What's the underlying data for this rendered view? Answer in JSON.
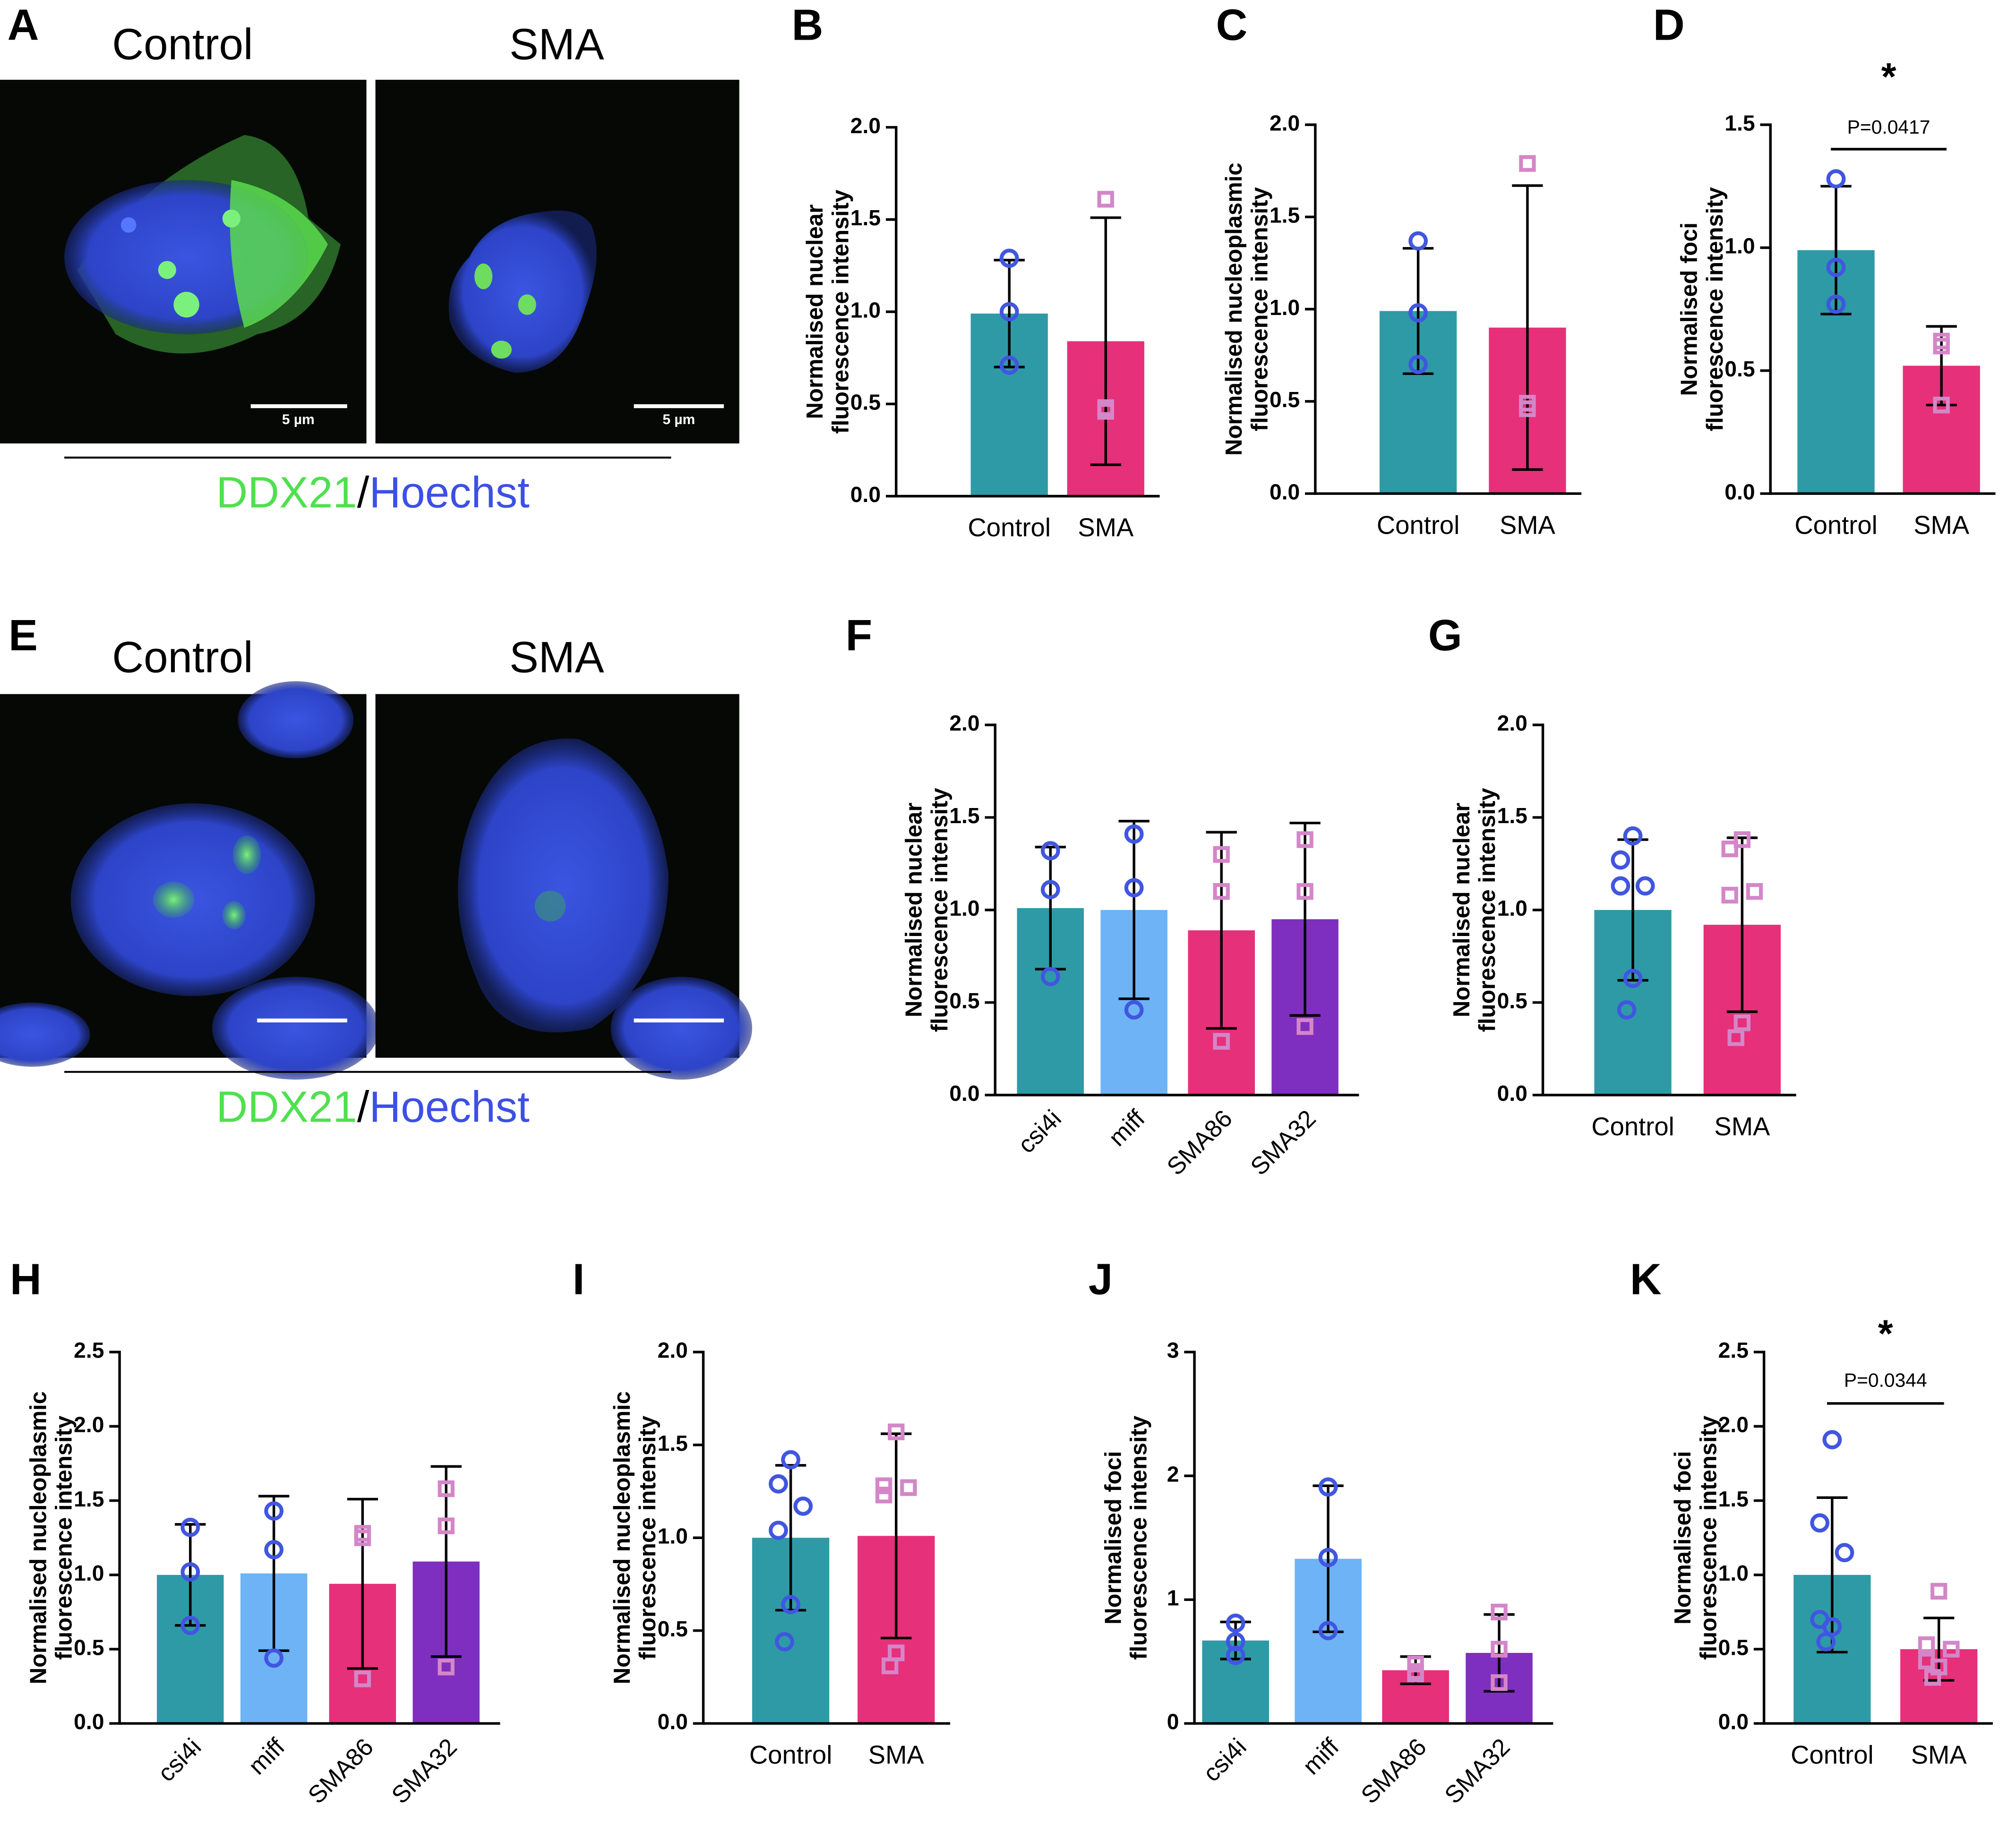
{
  "image_panels": [
    {
      "letter": "A",
      "conditions": [
        "Control",
        "SMA"
      ],
      "scale_bar": "5 µm",
      "stain": [
        "DDX21",
        "/",
        "Hoechst"
      ]
    },
    {
      "letter": "E",
      "conditions": [
        "Control",
        "SMA"
      ],
      "stain": [
        "DDX21",
        "/",
        "Hoechst"
      ]
    }
  ],
  "chart_data": [
    {
      "type": "bar",
      "letter": "B",
      "ylabel": [
        "Normalised nuclear",
        "fluorescence intensity"
      ],
      "categories": [
        "Control",
        "SMA"
      ],
      "values": [
        0.99,
        0.84
      ],
      "errors": [
        0.29,
        0.67
      ],
      "colors": [
        "#2e9aa6",
        "#e6307a"
      ],
      "points": [
        [
          1.29,
          1.0,
          0.71
        ],
        [
          1.61,
          0.46,
          0.48
        ]
      ],
      "point_colors": [
        "#4156e0",
        "#d486c8"
      ],
      "markers": [
        "circle",
        "square"
      ],
      "rotate_labels": false,
      "ylim": [
        0,
        2
      ],
      "yticks": [
        {
          "value": 0,
          "label": "0.0"
        },
        0.5,
        {
          "value": 1,
          "label": "1.0"
        },
        1.5,
        {
          "value": 2,
          "label": "2.0"
        }
      ]
    },
    {
      "type": "bar",
      "letter": "C",
      "ylabel": [
        "Normalised nucleoplasmic",
        "fluorescence intensity"
      ],
      "categories": [
        "Control",
        "SMA"
      ],
      "values": [
        0.99,
        0.9
      ],
      "errors": [
        0.34,
        0.77
      ],
      "colors": [
        "#2e9aa6",
        "#e6307a"
      ],
      "points": [
        [
          1.37,
          0.98,
          0.7
        ],
        [
          1.79,
          0.46,
          0.49
        ]
      ],
      "point_colors": [
        "#4156e0",
        "#d486c8"
      ],
      "markers": [
        "circle",
        "square"
      ],
      "rotate_labels": false,
      "ylim": [
        0,
        2
      ],
      "yticks": [
        {
          "value": 0,
          "label": "0.0"
        },
        0.5,
        {
          "value": 1,
          "label": "1.0"
        },
        1.5,
        {
          "value": 2,
          "label": "2.0"
        }
      ]
    },
    {
      "type": "bar",
      "letter": "D",
      "ylabel": [
        "Normalised foci",
        "fluorescence intensity"
      ],
      "categories": [
        "Control",
        "SMA"
      ],
      "values": [
        0.99,
        0.52
      ],
      "errors": [
        0.26,
        0.16
      ],
      "colors": [
        "#2e9aa6",
        "#e6307a"
      ],
      "points": [
        [
          1.28,
          0.92,
          0.77
        ],
        [
          0.62,
          0.6,
          0.36
        ]
      ],
      "point_colors": [
        "#4156e0",
        "#d486c8"
      ],
      "markers": [
        "circle",
        "square"
      ],
      "rotate_labels": false,
      "significance": "*",
      "p_value": "P=0.0417",
      "ylim": [
        0,
        1.5
      ],
      "yticks": [
        {
          "value": 0,
          "label": "0.0"
        },
        0.5,
        {
          "value": 1,
          "label": "1.0"
        },
        1.5
      ]
    },
    {
      "type": "bar",
      "letter": "F",
      "ylabel": [
        "Normalised nuclear",
        "fluorescence intensity"
      ],
      "categories": [
        "csi4i",
        "miff",
        "SMA86",
        "SMA32"
      ],
      "values": [
        1.01,
        1.0,
        0.89,
        0.95
      ],
      "errors": [
        0.33,
        0.48,
        0.53,
        0.52
      ],
      "colors": [
        "#2e9aa6",
        "#6db3f5",
        "#e6307a",
        "#7e2fbf"
      ],
      "points": [
        [
          1.32,
          1.11,
          0.64
        ],
        [
          1.41,
          1.12,
          0.46
        ],
        [
          1.3,
          1.1,
          0.29
        ],
        [
          1.38,
          1.1,
          0.37
        ]
      ],
      "point_colors": [
        "#4156e0",
        "#4156e0",
        "#d486c8",
        "#d486c8"
      ],
      "markers": [
        "circle",
        "circle",
        "square",
        "square"
      ],
      "rotate_labels": true,
      "ylim": [
        0,
        2
      ],
      "yticks": [
        {
          "value": 0,
          "label": "0.0"
        },
        0.5,
        {
          "value": 1,
          "label": "1.0"
        },
        1.5,
        {
          "value": 2,
          "label": "2.0"
        }
      ]
    },
    {
      "type": "bar",
      "letter": "G",
      "ylabel": [
        "Normalised nuclear",
        "fluorescence intensity"
      ],
      "categories": [
        "Control",
        "SMA"
      ],
      "values": [
        1.0,
        0.92
      ],
      "errors": [
        0.38,
        0.47
      ],
      "colors": [
        "#2e9aa6",
        "#e6307a"
      ],
      "points": [
        [
          1.4,
          1.27,
          1.13,
          1.13,
          0.63,
          0.46
        ],
        [
          1.38,
          1.33,
          1.1,
          1.08,
          0.39,
          0.31
        ]
      ],
      "point_colors": [
        "#4156e0",
        "#d486c8"
      ],
      "markers": [
        "circle",
        "square"
      ],
      "rotate_labels": false,
      "ylim": [
        0,
        2
      ],
      "yticks": [
        {
          "value": 0,
          "label": "0.0"
        },
        0.5,
        {
          "value": 1,
          "label": "1.0"
        },
        1.5,
        {
          "value": 2,
          "label": "2.0"
        }
      ]
    },
    {
      "type": "bar",
      "letter": "H",
      "ylabel": [
        "Normalised nucleoplasmic",
        "fluorescence intensity"
      ],
      "categories": [
        "csi4i",
        "miff",
        "SMA86",
        "SMA32"
      ],
      "values": [
        1.0,
        1.01,
        0.94,
        1.09
      ],
      "errors": [
        0.34,
        0.52,
        0.57,
        0.64
      ],
      "colors": [
        "#2e9aa6",
        "#6db3f5",
        "#e6307a",
        "#7e2fbf"
      ],
      "points": [
        [
          1.32,
          1.02,
          0.66
        ],
        [
          1.43,
          1.17,
          0.44
        ],
        [
          1.28,
          1.25,
          0.3
        ],
        [
          1.58,
          1.33,
          0.38
        ]
      ],
      "point_colors": [
        "#4156e0",
        "#4156e0",
        "#d486c8",
        "#d486c8"
      ],
      "markers": [
        "circle",
        "circle",
        "square",
        "square"
      ],
      "rotate_labels": true,
      "ylim": [
        0,
        2.5
      ],
      "yticks": [
        {
          "value": 0,
          "label": "0.0"
        },
        0.5,
        {
          "value": 1,
          "label": "1.0"
        },
        1.5,
        {
          "value": 2,
          "label": "2.0"
        },
        2.5
      ]
    },
    {
      "type": "bar",
      "letter": "I",
      "ylabel": [
        "Normalised nucleoplasmic",
        "fluorescence intensity"
      ],
      "categories": [
        "Control",
        "SMA"
      ],
      "values": [
        1.0,
        1.01
      ],
      "errors": [
        0.39,
        0.55
      ],
      "colors": [
        "#2e9aa6",
        "#e6307a"
      ],
      "points": [
        [
          1.42,
          1.29,
          1.17,
          1.04,
          0.64,
          0.44
        ],
        [
          1.57,
          1.28,
          1.27,
          1.23,
          0.38,
          0.31
        ]
      ],
      "point_colors": [
        "#4156e0",
        "#d486c8"
      ],
      "markers": [
        "circle",
        "square"
      ],
      "rotate_labels": false,
      "ylim": [
        0,
        2
      ],
      "yticks": [
        {
          "value": 0,
          "label": "0.0"
        },
        0.5,
        {
          "value": 1,
          "label": "1.0"
        },
        1.5,
        {
          "value": 2,
          "label": "2.0"
        }
      ]
    },
    {
      "type": "bar",
      "letter": "J",
      "ylabel": [
        "Normalised foci",
        "fluorescence intensity"
      ],
      "categories": [
        "csi4i",
        "miff",
        "SMA86",
        "SMA32"
      ],
      "values": [
        0.67,
        1.33,
        0.43,
        0.57
      ],
      "errors": [
        0.15,
        0.59,
        0.11,
        0.31
      ],
      "colors": [
        "#2e9aa6",
        "#6db3f5",
        "#e6307a",
        "#7e2fbf"
      ],
      "points": [
        [
          0.81,
          0.66,
          0.55
        ],
        [
          1.91,
          1.34,
          0.75
        ],
        [
          0.48,
          0.42,
          0.4
        ],
        [
          0.9,
          0.6,
          0.33
        ]
      ],
      "point_colors": [
        "#4156e0",
        "#4156e0",
        "#d486c8",
        "#d486c8"
      ],
      "markers": [
        "circle",
        "circle",
        "square",
        "square"
      ],
      "rotate_labels": true,
      "ylim": [
        0,
        3
      ],
      "yticks": [
        0,
        1,
        2,
        3
      ]
    },
    {
      "type": "bar",
      "letter": "K",
      "ylabel": [
        "Normalised foci",
        "fluorescence intensity"
      ],
      "categories": [
        "Control",
        "SMA"
      ],
      "values": [
        1.0,
        0.5
      ],
      "errors": [
        0.52,
        0.21
      ],
      "colors": [
        "#2e9aa6",
        "#e6307a"
      ],
      "points": [
        [
          1.91,
          1.35,
          1.15,
          0.7,
          0.65,
          0.55
        ],
        [
          0.89,
          0.53,
          0.5,
          0.42,
          0.38,
          0.31
        ]
      ],
      "point_colors": [
        "#4156e0",
        "#d486c8"
      ],
      "markers": [
        "circle",
        "square"
      ],
      "rotate_labels": false,
      "significance": "*",
      "p_value": "P=0.0344",
      "ylim": [
        0,
        2.5
      ],
      "yticks": [
        {
          "value": 0,
          "label": "0.0"
        },
        0.5,
        {
          "value": 1,
          "label": "1.0"
        },
        1.5,
        {
          "value": 2,
          "label": "2.0"
        },
        2.5
      ]
    }
  ]
}
